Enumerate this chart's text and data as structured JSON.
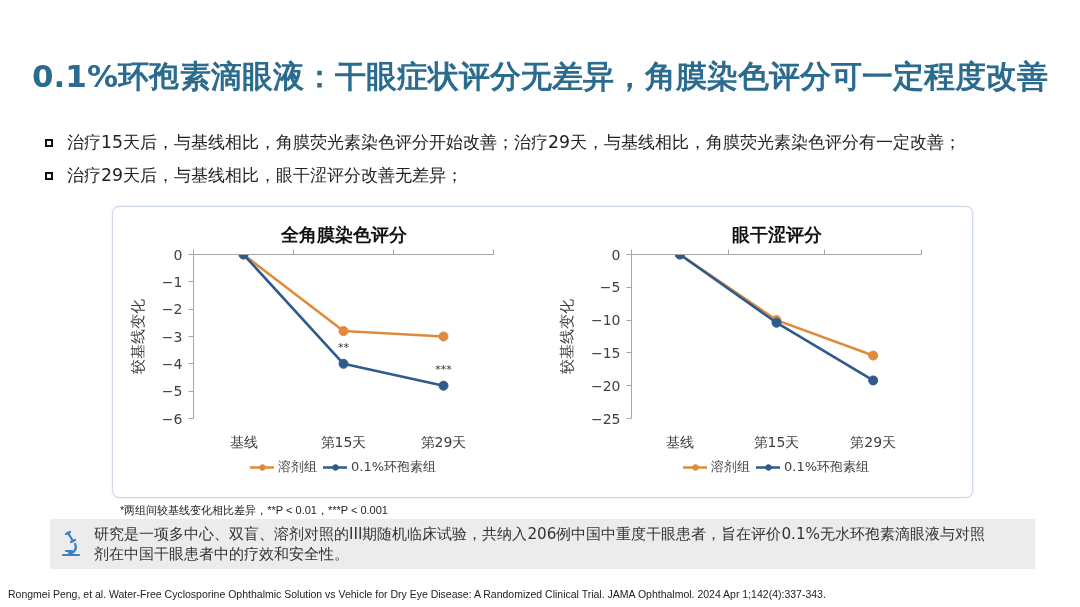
{
  "chart_data": [
    {
      "type": "line",
      "title": "全角膜染色评分",
      "ylabel": "较基线变化",
      "categories": [
        "基线",
        "第15天",
        "第29天"
      ],
      "ylim": [
        -6,
        0
      ],
      "yticks": [
        0,
        -1,
        -2,
        -3,
        -4,
        -5,
        -6
      ],
      "marker": "circle",
      "line_style": "solid",
      "legend": "bottom",
      "series": [
        {
          "name": "溶剂组",
          "color": "#e08a3c",
          "values": [
            0,
            -2.8,
            -3.0
          ]
        },
        {
          "name": "0.1%环孢素组",
          "color": "#2f5b8c",
          "values": [
            0,
            -4.0,
            -4.8
          ]
        }
      ],
      "annotations": [
        "0.1%环孢素滴眼液：干眼症状评分无差异，角膜染色评分可一定程度改善",
        "治疗15天后，与基线相比，角膜荧光素染色评分开始改善；治疗29天，与基线相比，角膜荧光素染色评分有一定改善；",
        "治疗29天后，与基线相比，眼干涩评分改善无差异；",
        {
          "text": "**",
          "x": "第15天",
          "y": -4.0
        },
        {
          "text": "***",
          "x": "第29天",
          "y": -4.8
        },
        "*两组间较基线变化相比差异，**P < 0.01，***P < 0.001",
        "研究是一项多中心、双盲、溶剂对照的III期随机临床试验，共纳入206例中国中重度干眼患者，旨在评价0.1%无水环孢素滴眼液与对照剂在中国干眼患者中的疗效和安全性。",
        "Rongmei Peng, et al. Water-Free Cyclosporine Ophthalmic Solution vs Vehicle for Dry Eye Disease: A Randomized Clinical Trial. JAMA Ophthalmol. 2024 Apr 1;142(4):337-343."
      ]
    },
    {
      "type": "line",
      "title": "眼干涩评分",
      "ylabel": "较基线变化",
      "categories": [
        "基线",
        "第15天",
        "第29天"
      ],
      "ylim": [
        -25,
        0
      ],
      "yticks": [
        0,
        -5,
        -10,
        -15,
        -20,
        -25
      ],
      "marker": "circle",
      "line_style": "solid",
      "legend": "bottom",
      "series": [
        {
          "name": "溶剂组",
          "color": "#e08a3c",
          "values": [
            0,
            -10.0,
            -15.4
          ]
        },
        {
          "name": "0.1%环孢素组",
          "color": "#2f5b8c",
          "values": [
            0,
            -10.4,
            -19.2
          ]
        }
      ]
    }
  ]
}
